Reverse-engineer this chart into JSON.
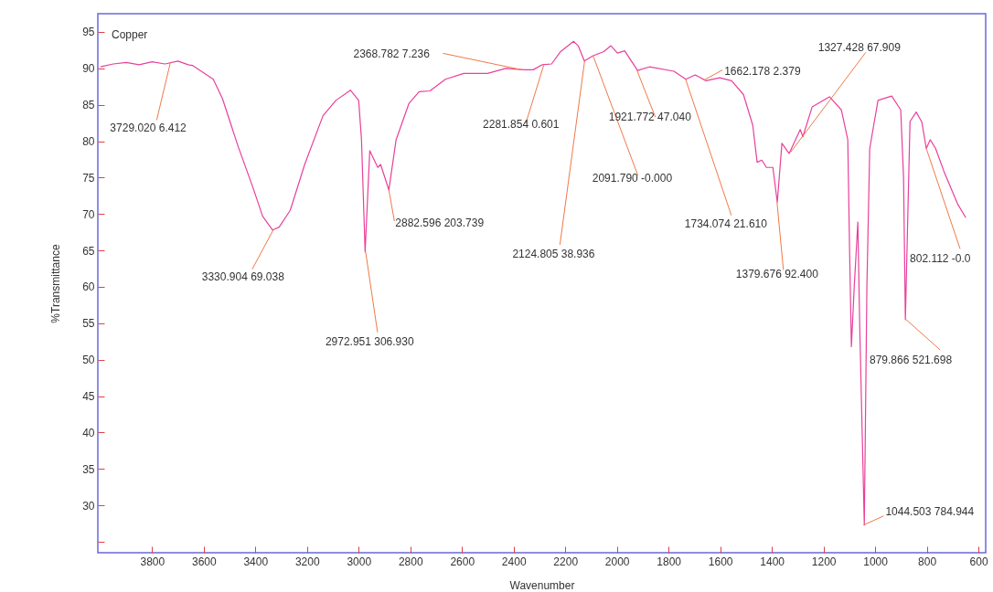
{
  "chart_data": {
    "type": "line",
    "xlabel": "Wavenumber",
    "ylabel": "%Transmittance",
    "xlim": [
      4010,
      572
    ],
    "ylim": [
      23.5,
      97.5
    ],
    "xticks": [
      3800,
      3600,
      3400,
      3200,
      3000,
      2800,
      2600,
      2400,
      2200,
      2000,
      1800,
      1600,
      1400,
      1200,
      1000,
      800,
      600
    ],
    "yticks": [
      {
        "value": 25,
        "label": null
      },
      30,
      35,
      40,
      45,
      50,
      55,
      60,
      65,
      70,
      75,
      80,
      85,
      90,
      95
    ],
    "grid": false,
    "series": [
      {
        "color": "#e8409a",
        "x": [
          4000,
          3950,
          3900,
          3850,
          3800,
          3750,
          3700,
          3660,
          3644,
          3563,
          3527,
          3467,
          3407,
          3372,
          3333,
          3308,
          3265,
          3209,
          3138,
          3088,
          3032,
          3000,
          2989,
          2975,
          2957,
          2926,
          2915,
          2883,
          2855,
          2805,
          2766,
          2724,
          2664,
          2593,
          2501,
          2430,
          2359,
          2324,
          2289,
          2253,
          2218,
          2168,
          2150,
          2126,
          2094,
          2051,
          2023,
          1998,
          1970,
          1920,
          1874,
          1779,
          1733,
          1697,
          1655,
          1602,
          1556,
          1510,
          1474,
          1457,
          1439,
          1421,
          1396,
          1379,
          1361,
          1333,
          1290,
          1280,
          1244,
          1177,
          1131,
          1106,
          1099,
          1092,
          1081,
          1067,
          1060,
          1042,
          1032,
          1021,
          989,
          936,
          901,
          890,
          883,
          865,
          841,
          819,
          802,
          787,
          766,
          731,
          681,
          649
        ],
        "values": [
          90.2,
          90.6,
          90.8,
          90.5,
          90.9,
          90.6,
          91.0,
          90.5,
          90.4,
          88.5,
          85.8,
          79.3,
          73.4,
          69.7,
          67.8,
          68.2,
          70.5,
          76.8,
          83.5,
          85.6,
          87.0,
          85.6,
          80.2,
          64.8,
          78.7,
          76.4,
          76.8,
          73.3,
          80.2,
          85.2,
          86.8,
          86.9,
          88.5,
          89.3,
          89.3,
          90.0,
          89.8,
          89.8,
          90.5,
          90.6,
          92.3,
          93.7,
          93.1,
          91.0,
          91.7,
          92.3,
          93.1,
          92.1,
          92.4,
          89.7,
          90.2,
          89.6,
          88.5,
          89.1,
          88.3,
          88.7,
          88.3,
          86.4,
          82.2,
          77.1,
          77.4,
          76.4,
          76.4,
          71.6,
          79.7,
          78.3,
          81.6,
          80.6,
          84.7,
          86.1,
          84.3,
          80.2,
          65.0,
          51.8,
          60.0,
          68.9,
          55.0,
          27.3,
          60.0,
          79.0,
          85.6,
          86.2,
          84.3,
          75.0,
          55.5,
          82.7,
          84.0,
          82.6,
          79.0,
          80.2,
          79.0,
          75.6,
          71.4,
          69.5
        ]
      }
    ],
    "annotations": [
      "Copper",
      {
        "text": "3729.020 6.412",
        "x": 3729,
        "y": 90.8
      },
      {
        "text": "3330.904 69.038",
        "x": 3331,
        "y": 67.8
      },
      {
        "text": "2972.951 306.930",
        "x": 2973,
        "y": 64.8
      },
      {
        "text": "2882.596 203.739",
        "x": 2883,
        "y": 73.3
      },
      {
        "text": "2368.782 7.236",
        "x": 2369,
        "y": 89.8
      },
      {
        "text": "2281.854 0.601",
        "x": 2282,
        "y": 90.6
      },
      {
        "text": "2124.805 38.936",
        "x": 2125,
        "y": 91.0
      },
      {
        "text": "2091.790 -0.000",
        "x": 2092,
        "y": 91.7
      },
      {
        "text": "1921.772 47.040",
        "x": 1922,
        "y": 89.7
      },
      {
        "text": "1734.074 21.610",
        "x": 1734,
        "y": 88.5
      },
      {
        "text": "1662.178 2.379",
        "x": 1662,
        "y": 88.4
      },
      {
        "text": "1327.428 67.909",
        "x": 1327,
        "y": 78.5
      },
      {
        "text": "1379.676 92.400",
        "x": 1380,
        "y": 71.6
      },
      {
        "text": "802.112 -0.0",
        "x": 802,
        "y": 79.0
      },
      {
        "text": "879.866 521.698",
        "x": 880,
        "y": 55.5
      },
      {
        "text": "1044.503 784.944",
        "x": 1045,
        "y": 27.3
      }
    ]
  }
}
